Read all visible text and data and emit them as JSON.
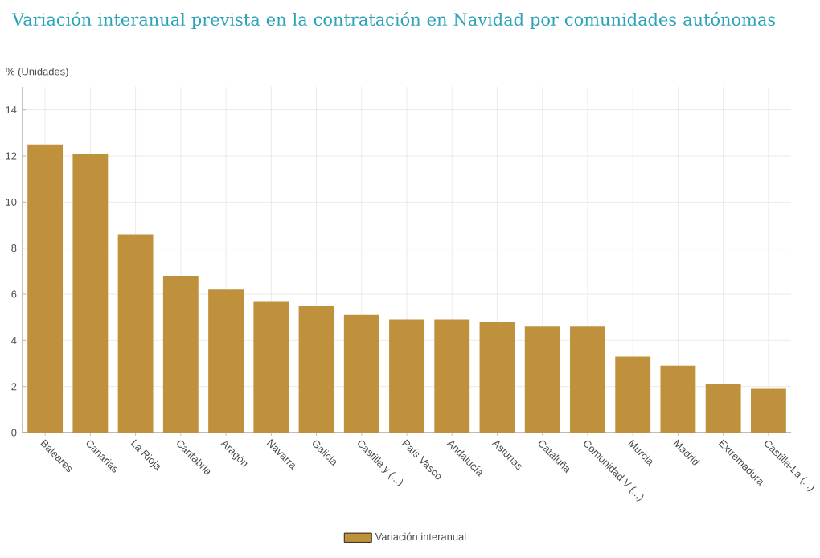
{
  "chart_data": {
    "type": "bar",
    "title": "Variación interanual prevista en la contratación en Navidad por comunidades autónomas",
    "ylabel": "% (Unidades)",
    "categories": [
      "Baleares",
      "Canarias",
      "La Rioja",
      "Cantabria",
      "Aragón",
      "Navarra",
      "Galicia",
      "Castilla y (...)",
      "País Vasco",
      "Andalucía",
      "Asturias",
      "Cataluña",
      "Comunidad V (...)",
      "Murcia",
      "Madrid",
      "Extremadura",
      "Castilla-La (...)"
    ],
    "series": [
      {
        "name": "Variación interanual",
        "color": "#c0913c",
        "values": [
          12.5,
          12.1,
          8.6,
          6.8,
          6.2,
          5.7,
          5.5,
          5.1,
          4.9,
          4.9,
          4.8,
          4.6,
          4.6,
          3.3,
          2.9,
          2.1,
          1.9
        ]
      }
    ],
    "ylim": [
      0,
      15
    ],
    "yticks": [
      0,
      2,
      4,
      6,
      8,
      10,
      12,
      14
    ],
    "grid": true,
    "legend": "bottom"
  }
}
